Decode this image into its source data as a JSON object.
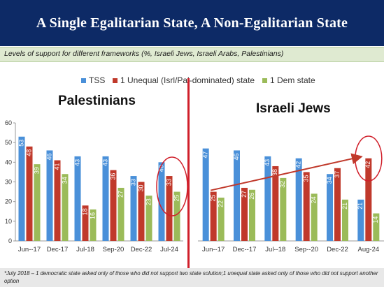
{
  "header": {
    "title": "A Single Egalitarian State, A Non-Egalitarian State"
  },
  "subtitle": "Levels of support for different frameworks (%, Israeli Jews, Israeli Arabs, Palestinians)",
  "legend": [
    {
      "label": "TSS",
      "color": "#4a90d9"
    },
    {
      "label": "1 Unequal (Isrl/Pal-dominated) state",
      "color": "#c0392b"
    },
    {
      "label": "1 Dem state",
      "color": "#9bbb59"
    }
  ],
  "footnote": "*July 2018 – 1 democratic state asked only of those who did not support two state solution;1 unequal state asked only of those who did not support another option",
  "chart_data": [
    {
      "type": "bar",
      "title": "Palestinians",
      "categories": [
        "Jun--17",
        "Dec-17",
        "Jul-18",
        "Sep-20",
        "Dec-22",
        "Jul-24"
      ],
      "ylim": [
        0,
        60
      ],
      "yticks": [
        0,
        10,
        20,
        30,
        40,
        50,
        60
      ],
      "show_y_axis": true,
      "series": [
        {
          "name": "TSS",
          "color": "#4a90d9",
          "values": [
            53,
            46,
            43,
            43,
            33,
            40
          ]
        },
        {
          "name": "1 Unequal (Isrl/Pal-dominated) state",
          "color": "#c0392b",
          "values": [
            48,
            41,
            18,
            36,
            30,
            33
          ]
        },
        {
          "name": "1 Dem state",
          "color": "#9bbb59",
          "values": [
            39,
            34,
            16,
            27,
            23,
            25
          ]
        }
      ],
      "highlight_category": "Jul-24",
      "grid": false
    },
    {
      "type": "bar",
      "title": "Israeli Jews",
      "categories": [
        "Jun--17",
        "Dec--17",
        "Jul--18",
        "Sep--20",
        "Dec-22",
        "Aug-24"
      ],
      "ylim": [
        0,
        60
      ],
      "show_y_axis": false,
      "series": [
        {
          "name": "TSS",
          "color": "#4a90d9",
          "values": [
            47,
            46,
            43,
            42,
            34,
            21
          ]
        },
        {
          "name": "1 Unequal (Isrl/Pal-dominated) state",
          "color": "#c0392b",
          "values": [
            25,
            27,
            38,
            35,
            37,
            42
          ]
        },
        {
          "name": "1 Dem state",
          "color": "#9bbb59",
          "values": [
            22,
            26,
            32,
            24,
            21,
            14
          ]
        }
      ],
      "highlight_category": "Aug-24",
      "trend_arrow": {
        "from_category": "Jun--17",
        "to_category": "Aug-24",
        "series": "1 Unequal (Isrl/Pal-dominated) state"
      },
      "grid": false
    }
  ]
}
